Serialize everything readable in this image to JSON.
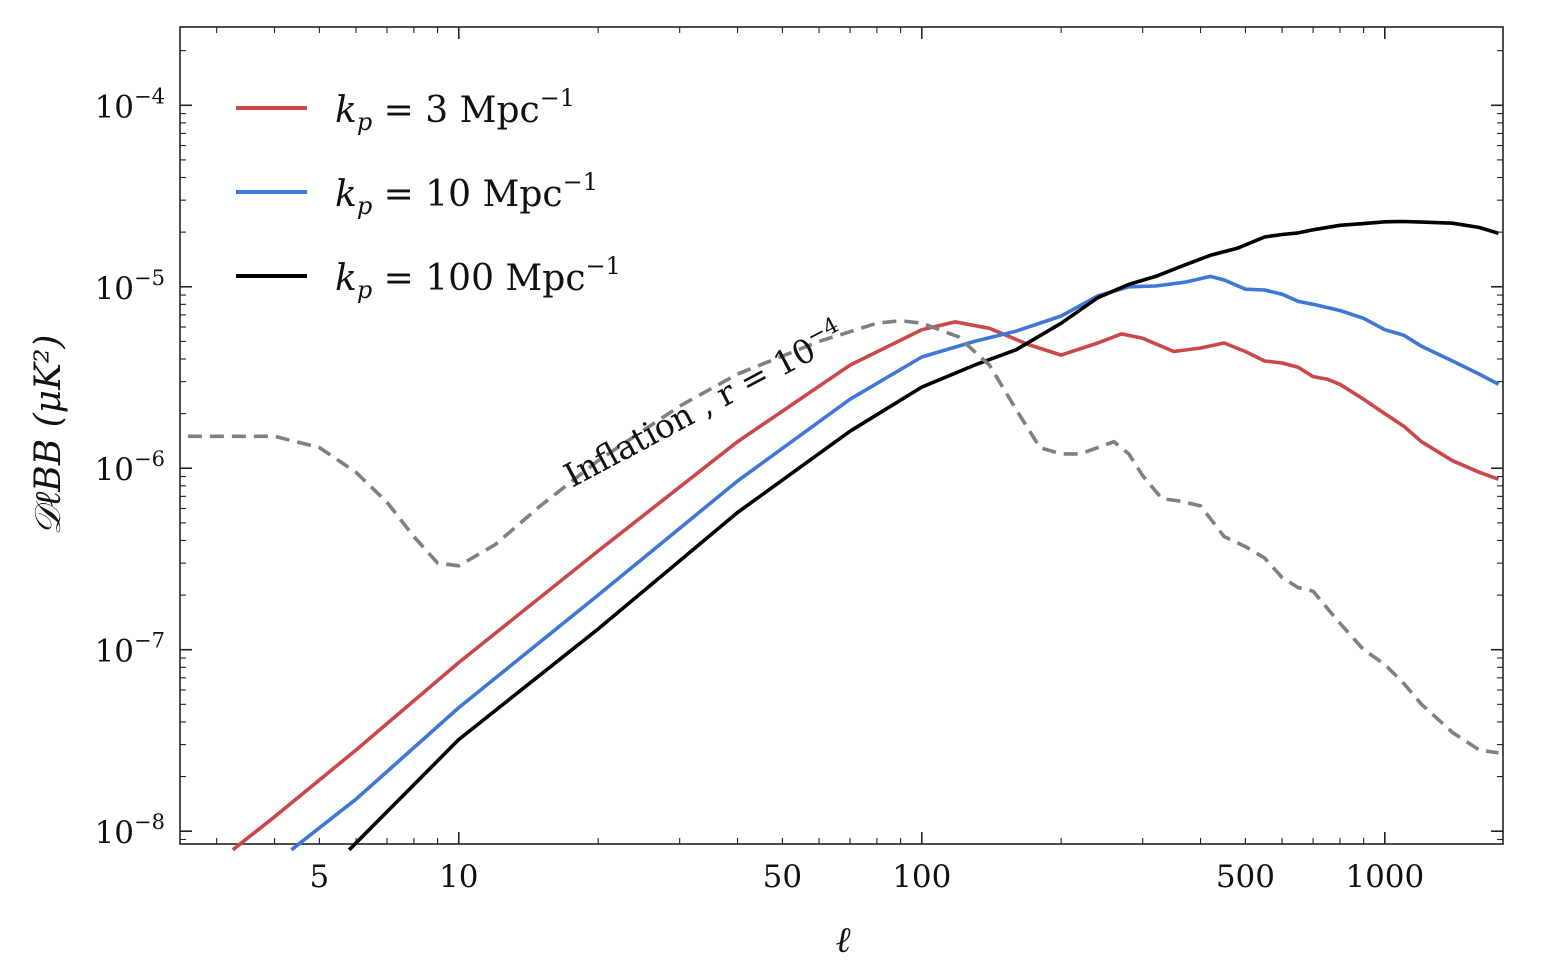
{
  "chart_data": {
    "type": "line",
    "xscale": "log",
    "yscale": "log",
    "xlim": [
      2.5,
      1800
    ],
    "ylim": [
      8.5e-09,
      0.00027
    ],
    "xlabel": "ℓ",
    "ylabel": "𝒟ℓBB (μK²)",
    "xticks": [
      {
        "value": 5,
        "label": "5"
      },
      {
        "value": 10,
        "label": "10"
      },
      {
        "value": 50,
        "label": "50"
      },
      {
        "value": 100,
        "label": "100"
      },
      {
        "value": 500,
        "label": "500"
      },
      {
        "value": 1000,
        "label": "1000"
      }
    ],
    "yticks": [
      {
        "value": 1e-08,
        "base": "10",
        "exp": "−8"
      },
      {
        "value": 1e-07,
        "base": "10",
        "exp": "−7"
      },
      {
        "value": 1e-06,
        "base": "10",
        "exp": "−6"
      },
      {
        "value": 1e-05,
        "base": "10",
        "exp": "−5"
      },
      {
        "value": 0.0001,
        "base": "10",
        "exp": "−4"
      }
    ],
    "annotation": {
      "text": "Inflation , r = 10",
      "exp": "−4",
      "x": 13,
      "y": 8.5e-07
    },
    "series": [
      {
        "name": "kp = 3 Mpc−1",
        "legend": {
          "main": "k",
          "sub": "p",
          "rest": " = 3 Mpc",
          "sup": "−1"
        },
        "color": "#cc4747",
        "style": "solid",
        "x": [
          3.25,
          4,
          6,
          10,
          20,
          40,
          70,
          100,
          118,
          140,
          170,
          200,
          240,
          270,
          300,
          350,
          400,
          450,
          500,
          550,
          600,
          650,
          700,
          750,
          800,
          900,
          1000,
          1100,
          1200,
          1400,
          1600,
          1760
        ],
        "y": [
          7.9e-09,
          1.2e-08,
          2.8e-08,
          8.5e-08,
          3.5e-07,
          1.4e-06,
          3.7e-06,
          5.8e-06,
          6.4e-06,
          5.9e-06,
          4.8e-06,
          4.2e-06,
          4.9e-06,
          5.5e-06,
          5.2e-06,
          4.4e-06,
          4.6e-06,
          4.9e-06,
          4.4e-06,
          3.9e-06,
          3.8e-06,
          3.6e-06,
          3.2e-06,
          3.1e-06,
          2.9e-06,
          2.4e-06,
          2e-06,
          1.7e-06,
          1.4e-06,
          1.1e-06,
          9.5e-07,
          8.7e-07
        ]
      },
      {
        "name": "kp = 10 Mpc−1",
        "legend": {
          "main": "k",
          "sub": "p",
          "rest": " = 10 Mpc",
          "sup": "−1"
        },
        "color": "#3f77d6",
        "style": "solid",
        "x": [
          4.35,
          6,
          10,
          20,
          40,
          70,
          100,
          130,
          160,
          200,
          240,
          280,
          320,
          370,
          420,
          450,
          500,
          550,
          600,
          650,
          700,
          800,
          900,
          1000,
          1100,
          1200,
          1400,
          1600,
          1760
        ],
        "y": [
          7.9e-09,
          1.5e-08,
          4.8e-08,
          2e-07,
          8.5e-07,
          2.4e-06,
          4.1e-06,
          5e-06,
          5.7e-06,
          6.9e-06,
          8.9e-06,
          1e-05,
          1.01e-05,
          1.06e-05,
          1.14e-05,
          1.09e-05,
          9.7e-06,
          9.6e-06,
          9.1e-06,
          8.3e-06,
          8e-06,
          7.4e-06,
          6.7e-06,
          5.8e-06,
          5.4e-06,
          4.7e-06,
          3.9e-06,
          3.3e-06,
          2.9e-06
        ]
      },
      {
        "name": "kp = 100 Mpc−1",
        "legend": {
          "main": "k",
          "sub": "p",
          "rest": " = 100 Mpc",
          "sup": "−1"
        },
        "color": "#000000",
        "style": "solid",
        "x": [
          5.8,
          10,
          20,
          40,
          70,
          100,
          130,
          160,
          200,
          240,
          280,
          320,
          370,
          420,
          480,
          550,
          600,
          650,
          700,
          800,
          900,
          1000,
          1100,
          1200,
          1400,
          1600,
          1760
        ],
        "y": [
          7.9e-09,
          3.2e-08,
          1.3e-07,
          5.7e-07,
          1.6e-06,
          2.8e-06,
          3.7e-06,
          4.5e-06,
          6.3e-06,
          8.7e-06,
          1.03e-05,
          1.14e-05,
          1.32e-05,
          1.49e-05,
          1.63e-05,
          1.88e-05,
          1.94e-05,
          1.98e-05,
          2.06e-05,
          2.18e-05,
          2.23e-05,
          2.28e-05,
          2.29e-05,
          2.27e-05,
          2.24e-05,
          2.12e-05,
          1.97e-05
        ]
      },
      {
        "name": "Inflation , r = 10−4",
        "color": "#808080",
        "style": "dashed",
        "x": [
          2.6,
          4,
          5,
          6,
          7,
          8,
          9,
          10,
          12,
          15,
          20,
          30,
          40,
          60,
          80,
          90,
          100,
          120,
          140,
          160,
          180,
          200,
          220,
          240,
          260,
          280,
          300,
          330,
          360,
          400,
          450,
          500,
          550,
          600,
          650,
          700,
          750,
          800,
          900,
          1000,
          1100,
          1200,
          1400,
          1600,
          1760
        ],
        "y": [
          1.5e-06,
          1.5e-06,
          1.3e-06,
          9.5e-07,
          6.5e-07,
          4.2e-07,
          3e-07,
          2.9e-07,
          3.8e-07,
          6.2e-07,
          1.1e-06,
          2.2e-06,
          3.3e-06,
          5e-06,
          6.3e-06,
          6.5e-06,
          6.3e-06,
          5.3e-06,
          3.7e-06,
          2.1e-06,
          1.3e-06,
          1.2e-06,
          1.2e-06,
          1.3e-06,
          1.4e-06,
          1.2e-06,
          9.1e-07,
          6.8e-07,
          6.6e-07,
          6.2e-07,
          4.2e-07,
          3.7e-07,
          3.2e-07,
          2.5e-07,
          2.2e-07,
          2.1e-07,
          1.7e-07,
          1.4e-07,
          1e-07,
          8.3e-08,
          6.5e-08,
          5e-08,
          3.5e-08,
          2.8e-08,
          2.7e-08
        ]
      }
    ]
  }
}
